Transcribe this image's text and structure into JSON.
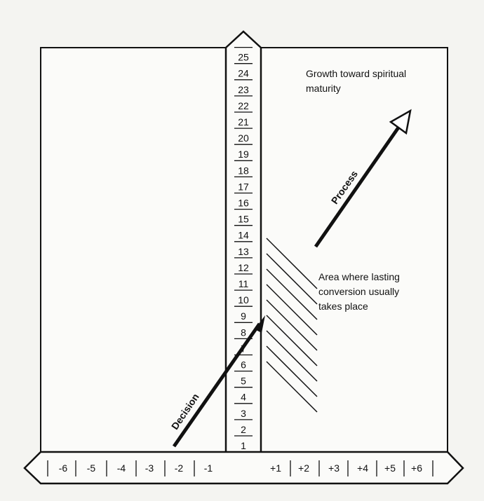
{
  "vertical_scale": [
    1,
    2,
    3,
    4,
    5,
    6,
    7,
    8,
    9,
    10,
    11,
    12,
    13,
    14,
    15,
    16,
    17,
    18,
    19,
    20,
    21,
    22,
    23,
    24,
    25
  ],
  "horizontal_scale": {
    "negative": [
      "-6",
      "-5",
      "-4",
      "-3",
      "-2",
      "-1"
    ],
    "positive": [
      "+1",
      "+2",
      "+3",
      "+4",
      "+5",
      "+6"
    ]
  },
  "labels": {
    "growth": [
      "Growth toward spiritual",
      "maturity"
    ],
    "area": [
      "Area where lasting",
      "conversion usually",
      "takes place"
    ],
    "decision": "Decision",
    "process": "Process"
  }
}
